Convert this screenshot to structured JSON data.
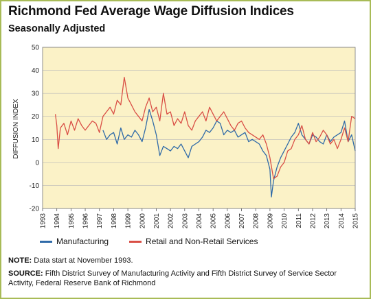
{
  "title": "Richmond Fed Average Wage Diffusion Indices",
  "subtitle": "Seasonally Adjusted",
  "note_label": "NOTE:",
  "note_text": " Data start at November 1993.",
  "source_label": "SOURCE:",
  "source_text": " Fifth District Survey of Manufacturing Activity and Fifth District Survey of Service Sector Activity, Federal Reserve Bank of Richmond",
  "colors": {
    "manufacturing": "#2f6aa8",
    "services": "#d94e45",
    "plot_bg": "#fbf2c7",
    "border": "#a8bb57",
    "grid": "#b9b9b9"
  },
  "chart_data": {
    "type": "line",
    "ylabel": "DIFFUSION INDEX",
    "ylim": [
      -20,
      50
    ],
    "yticks": [
      -20,
      -10,
      0,
      10,
      20,
      30,
      40,
      50
    ],
    "xlim": [
      1993,
      2015
    ],
    "xticks": [
      "1993",
      "1994",
      "1995",
      "1996",
      "1997",
      "1998",
      "1999",
      "2000",
      "2001",
      "2002",
      "2003",
      "2004",
      "2005",
      "2006",
      "2007",
      "2008",
      "2009",
      "2010",
      "2011",
      "2012",
      "2013",
      "2014",
      "2015"
    ],
    "grid": true,
    "legend_position": "bottom",
    "series": [
      {
        "name": "Manufacturing",
        "color": "#2f6aa8",
        "x": [
          1997.25,
          1997.5,
          1997.75,
          1998.0,
          1998.25,
          1998.5,
          1998.75,
          1999.0,
          1999.25,
          1999.5,
          1999.75,
          2000.0,
          2000.25,
          2000.5,
          2000.75,
          2001.0,
          2001.25,
          2001.5,
          2001.75,
          2002.0,
          2002.25,
          2002.5,
          2002.75,
          2003.0,
          2003.25,
          2003.5,
          2003.75,
          2004.0,
          2004.25,
          2004.5,
          2004.75,
          2005.0,
          2005.25,
          2005.5,
          2005.75,
          2006.0,
          2006.25,
          2006.5,
          2006.75,
          2007.0,
          2007.25,
          2007.5,
          2007.75,
          2008.0,
          2008.25,
          2008.5,
          2008.75,
          2009.0,
          2009.1,
          2009.25,
          2009.5,
          2009.75,
          2010.0,
          2010.25,
          2010.5,
          2010.75,
          2011.0,
          2011.25,
          2011.5,
          2011.75,
          2012.0,
          2012.25,
          2012.5,
          2012.75,
          2013.0,
          2013.25,
          2013.5,
          2013.75,
          2014.0,
          2014.25,
          2014.5,
          2014.75,
          2015.0
        ],
        "values": [
          14,
          10,
          12,
          13,
          8,
          15,
          10,
          12,
          11,
          14,
          12,
          9,
          15,
          23,
          18,
          12,
          3,
          7,
          6,
          5,
          7,
          6,
          8,
          5,
          2,
          7,
          8,
          9,
          11,
          14,
          13,
          15,
          18,
          17,
          12,
          14,
          13,
          14,
          11,
          12,
          13,
          9,
          10,
          9,
          8,
          5,
          3,
          -3,
          -15,
          -8,
          -2,
          2,
          5,
          8,
          11,
          13,
          17,
          12,
          10,
          8,
          12,
          11,
          9,
          8,
          12,
          9,
          11,
          12,
          13,
          18,
          9,
          12,
          5
        ]
      },
      {
        "name": "Retail and Non-Retail Services",
        "color": "#d94e45",
        "x": [
          1993.9,
          1994.0,
          1994.1,
          1994.25,
          1994.5,
          1994.75,
          1995.0,
          1995.25,
          1995.5,
          1995.75,
          1996.0,
          1996.25,
          1996.5,
          1996.75,
          1997.0,
          1997.25,
          1997.5,
          1997.75,
          1998.0,
          1998.25,
          1998.5,
          1998.75,
          1999.0,
          1999.25,
          1999.5,
          1999.75,
          2000.0,
          2000.25,
          2000.5,
          2000.75,
          2001.0,
          2001.25,
          2001.5,
          2001.75,
          2002.0,
          2002.25,
          2002.5,
          2002.75,
          2003.0,
          2003.25,
          2003.5,
          2003.75,
          2004.0,
          2004.25,
          2004.5,
          2004.75,
          2005.0,
          2005.25,
          2005.5,
          2005.75,
          2006.0,
          2006.25,
          2006.5,
          2006.75,
          2007.0,
          2007.25,
          2007.5,
          2007.75,
          2008.0,
          2008.25,
          2008.5,
          2008.75,
          2009.0,
          2009.25,
          2009.5,
          2009.75,
          2010.0,
          2010.25,
          2010.5,
          2010.75,
          2011.0,
          2011.25,
          2011.5,
          2011.75,
          2012.0,
          2012.25,
          2012.5,
          2012.75,
          2013.0,
          2013.25,
          2013.5,
          2013.75,
          2014.0,
          2014.25,
          2014.5,
          2014.75,
          2015.0
        ],
        "values": [
          21,
          16,
          6,
          15,
          17,
          12,
          18,
          14,
          19,
          16,
          14,
          16,
          18,
          17,
          13,
          20,
          22,
          24,
          21,
          27,
          25,
          37,
          28,
          25,
          22,
          20,
          18,
          24,
          28,
          22,
          24,
          18,
          30,
          21,
          22,
          16,
          19,
          17,
          22,
          16,
          14,
          18,
          20,
          22,
          18,
          24,
          21,
          18,
          20,
          22,
          19,
          16,
          14,
          17,
          18,
          15,
          13,
          12,
          11,
          10,
          12,
          8,
          2,
          -7,
          -6,
          -2,
          0,
          5,
          6,
          10,
          12,
          16,
          10,
          8,
          13,
          9,
          11,
          14,
          12,
          8,
          10,
          6,
          10,
          15,
          9,
          20,
          19
        ]
      }
    ]
  }
}
